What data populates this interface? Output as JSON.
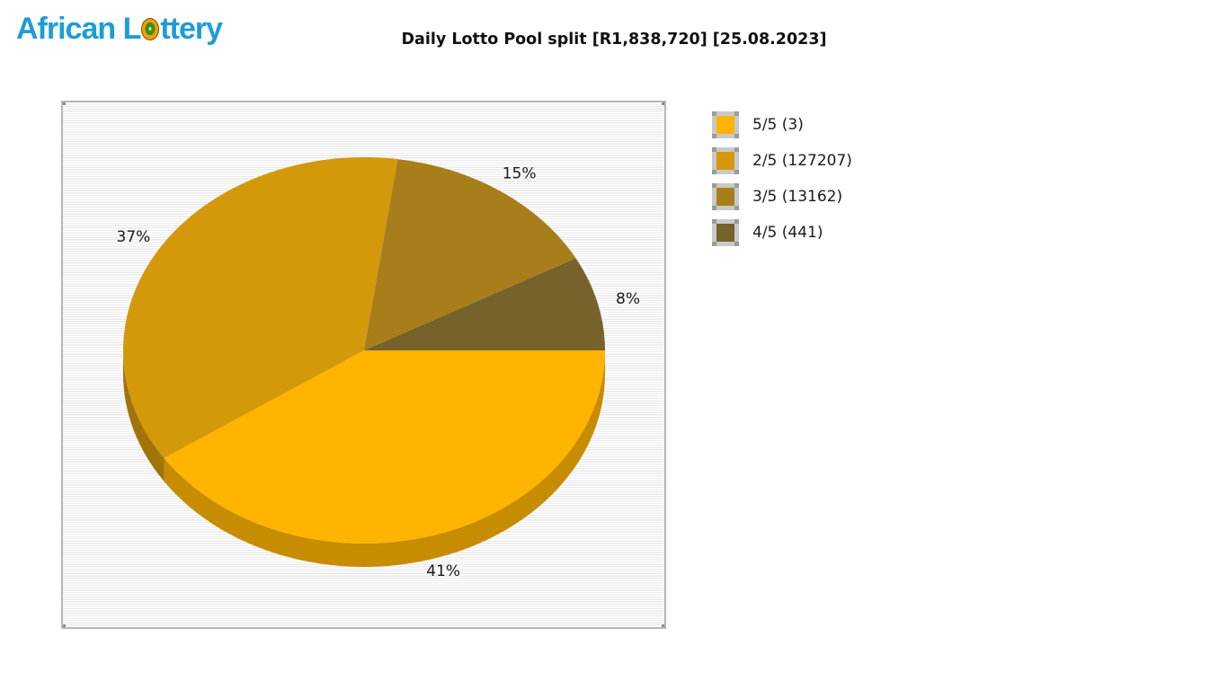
{
  "logo": {
    "text_before": "African L",
    "text_after": "ttery",
    "color": "#1E9CD8"
  },
  "title": "Daily Lotto Pool split [R1,838,720] [25.08.2023]",
  "chart_data": {
    "type": "pie",
    "title": "Daily Lotto Pool split [R1,838,720] [25.08.2023]",
    "pool_total": "R1,838,720",
    "draw_date": "25.08.2023",
    "legend_position": "right",
    "style": "3d-pie",
    "start_angle_deg": 0,
    "direction": "clockwise",
    "slices": [
      {
        "label": "5/5",
        "winners": 3,
        "percent": 41,
        "legend_label": "5/5 (3)",
        "color": "#FFB400",
        "side_color": "#C78C00"
      },
      {
        "label": "2/5",
        "winners": 127207,
        "percent": 37,
        "legend_label": "2/5 (127207)",
        "color": "#D4980B",
        "side_color": "#A07409"
      },
      {
        "label": "3/5",
        "winners": 13162,
        "percent": 15,
        "legend_label": "3/5 (13162)",
        "color": "#A87E1A",
        "side_color": "#7E5F13"
      },
      {
        "label": "4/5",
        "winners": 441,
        "percent": 8,
        "legend_label": "4/5 (441)",
        "color": "#77622B",
        "side_color": "#594A20"
      }
    ],
    "percent_labels": [
      "41%",
      "37%",
      "15%",
      "8%"
    ],
    "plot_background": "striped-light-gray",
    "frame_color": "#b6b6b6"
  }
}
